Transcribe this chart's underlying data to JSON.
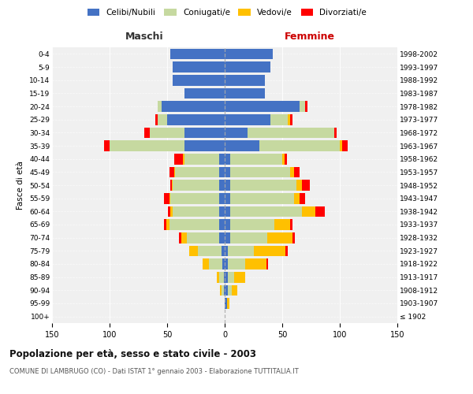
{
  "age_groups": [
    "100+",
    "95-99",
    "90-94",
    "85-89",
    "80-84",
    "75-79",
    "70-74",
    "65-69",
    "60-64",
    "55-59",
    "50-54",
    "45-49",
    "40-44",
    "35-39",
    "30-34",
    "25-29",
    "20-24",
    "15-19",
    "10-14",
    "5-9",
    "0-4"
  ],
  "birth_years": [
    "≤ 1902",
    "1903-1907",
    "1908-1912",
    "1913-1917",
    "1918-1922",
    "1923-1927",
    "1928-1932",
    "1933-1937",
    "1938-1942",
    "1943-1947",
    "1948-1952",
    "1953-1957",
    "1958-1962",
    "1963-1967",
    "1968-1972",
    "1973-1977",
    "1978-1982",
    "1983-1987",
    "1988-1992",
    "1993-1997",
    "1998-2002"
  ],
  "maschi": {
    "celibe": [
      0,
      0,
      1,
      1,
      2,
      3,
      5,
      5,
      5,
      5,
      5,
      5,
      5,
      35,
      35,
      50,
      55,
      35,
      45,
      45,
      47
    ],
    "coniugato": [
      0,
      0,
      2,
      4,
      12,
      20,
      28,
      43,
      40,
      42,
      40,
      38,
      30,
      65,
      30,
      8,
      3,
      0,
      0,
      0,
      0
    ],
    "vedovo": [
      0,
      0,
      1,
      2,
      5,
      8,
      5,
      3,
      2,
      1,
      1,
      1,
      1,
      0,
      0,
      0,
      0,
      0,
      0,
      0,
      0
    ],
    "divorziato": [
      0,
      0,
      0,
      0,
      0,
      0,
      2,
      2,
      2,
      5,
      1,
      4,
      8,
      5,
      5,
      2,
      0,
      0,
      0,
      0,
      0
    ]
  },
  "femmine": {
    "nubile": [
      0,
      2,
      3,
      3,
      3,
      3,
      5,
      5,
      5,
      5,
      5,
      5,
      5,
      30,
      20,
      40,
      65,
      35,
      35,
      40,
      42
    ],
    "coniugata": [
      0,
      0,
      3,
      5,
      15,
      22,
      32,
      38,
      62,
      55,
      57,
      52,
      45,
      70,
      75,
      15,
      5,
      0,
      0,
      0,
      0
    ],
    "vedova": [
      0,
      2,
      5,
      10,
      18,
      28,
      22,
      14,
      12,
      5,
      5,
      3,
      2,
      2,
      0,
      2,
      0,
      0,
      0,
      0,
      0
    ],
    "divorziata": [
      0,
      0,
      0,
      0,
      2,
      2,
      2,
      2,
      8,
      5,
      7,
      5,
      2,
      5,
      2,
      2,
      2,
      0,
      0,
      0,
      0
    ]
  },
  "colors": {
    "celibe": "#4472C4",
    "coniugato": "#C6D9A0",
    "vedovo": "#FFC000",
    "divorziato": "#FF0000"
  },
  "legend_labels": [
    "Celibi/Nubili",
    "Coniugati/e",
    "Vedovi/e",
    "Divorziati/e"
  ],
  "title": "Popolazione per età, sesso e stato civile - 2003",
  "subtitle": "COMUNE DI LAMBRUGO (CO) - Dati ISTAT 1° gennaio 2003 - Elaborazione TUTTITALIA.IT",
  "xlabel_left": "Maschi",
  "xlabel_right": "Femmine",
  "ylabel_left": "Fasce di età",
  "xlim": 150,
  "background_color": "#ffffff",
  "ax_bg": "#f0f0f0"
}
